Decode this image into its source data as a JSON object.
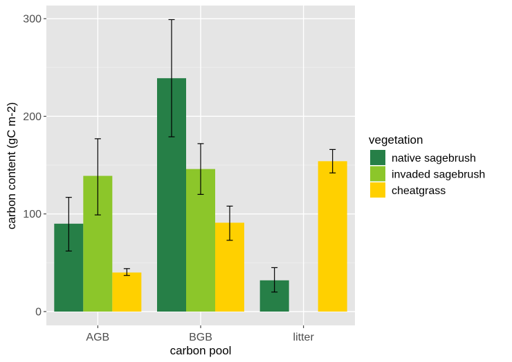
{
  "chart_data": {
    "type": "bar",
    "title": "",
    "xlabel": "carbon pool",
    "ylabel": "carbon content (gC m-2)",
    "categories": [
      "AGB",
      "BGB",
      "litter"
    ],
    "ylim": [
      -15,
      320
    ],
    "yticks": [
      0,
      100,
      200,
      300
    ],
    "grid": true,
    "legend": {
      "title": "vegetation",
      "position": "right"
    },
    "series": [
      {
        "name": "native sagebrush",
        "color": "#267f47",
        "values": [
          90,
          239,
          32
        ],
        "error_low": [
          62,
          179,
          20
        ],
        "error_high": [
          117,
          299,
          45
        ]
      },
      {
        "name": "invaded sagebrush",
        "color": "#8cc62a",
        "values": [
          139,
          146,
          null
        ],
        "error_low": [
          99,
          120,
          null
        ],
        "error_high": [
          177,
          172,
          null
        ]
      },
      {
        "name": "cheatgrass",
        "color": "#ffd000",
        "values": [
          40,
          91,
          154
        ],
        "error_low": [
          37,
          73,
          142
        ],
        "error_high": [
          44,
          108,
          166
        ]
      }
    ]
  }
}
